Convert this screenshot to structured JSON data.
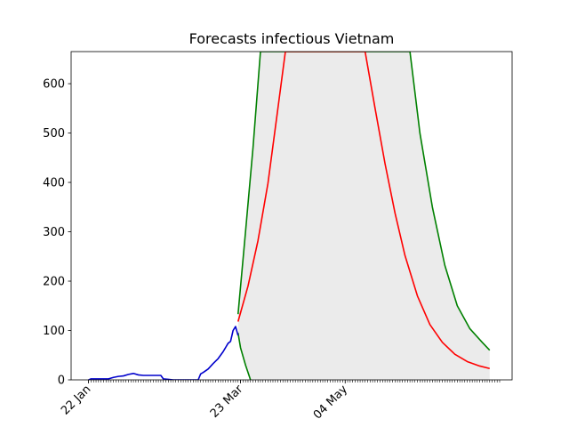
{
  "chart_data": {
    "type": "line",
    "title": "Forecasts infectious Vietnam",
    "xlabel": "",
    "ylabel": "",
    "x_tick_labels": [
      "22 Jan",
      "23 Mar",
      "04 May"
    ],
    "x_tick_dates": [
      "2020-01-22",
      "2020-03-23",
      "2020-05-04"
    ],
    "xlim": [
      "2020-01-15",
      "2020-07-10"
    ],
    "ylim": [
      0,
      665
    ],
    "y_ticks": [
      0,
      100,
      200,
      300,
      400,
      500,
      600
    ],
    "minor_tick_dates": {
      "start": "2020-01-22",
      "end": "2020-07-05",
      "step_days": 1
    },
    "grid": false,
    "legend": "none",
    "band": {
      "color": "#ebebeb",
      "lower_series": "lower",
      "upper_series": "upper"
    },
    "series": [
      {
        "key": "observed",
        "color": "#0000cc",
        "points": [
          [
            "2020-01-22",
            0
          ],
          [
            "2020-01-23",
            2
          ],
          [
            "2020-01-24",
            2
          ],
          [
            "2020-01-26",
            2
          ],
          [
            "2020-01-28",
            2
          ],
          [
            "2020-01-30",
            2
          ],
          [
            "2020-02-01",
            5
          ],
          [
            "2020-02-03",
            7
          ],
          [
            "2020-02-05",
            8
          ],
          [
            "2020-02-07",
            11
          ],
          [
            "2020-02-09",
            13
          ],
          [
            "2020-02-11",
            10
          ],
          [
            "2020-02-13",
            9
          ],
          [
            "2020-02-15",
            9
          ],
          [
            "2020-02-17",
            9
          ],
          [
            "2020-02-19",
            9
          ],
          [
            "2020-02-20",
            9
          ],
          [
            "2020-02-21",
            2
          ],
          [
            "2020-02-23",
            1
          ],
          [
            "2020-02-25",
            0
          ],
          [
            "2020-02-27",
            0
          ],
          [
            "2020-03-01",
            0
          ],
          [
            "2020-03-04",
            0
          ],
          [
            "2020-03-06",
            0
          ],
          [
            "2020-03-07",
            12
          ],
          [
            "2020-03-08",
            15
          ],
          [
            "2020-03-10",
            22
          ],
          [
            "2020-03-12",
            33
          ],
          [
            "2020-03-14",
            43
          ],
          [
            "2020-03-16",
            57
          ],
          [
            "2020-03-18",
            74
          ],
          [
            "2020-03-19",
            78
          ],
          [
            "2020-03-20",
            100
          ],
          [
            "2020-03-21",
            108
          ],
          [
            "2020-03-22",
            90
          ]
        ]
      },
      {
        "key": "median",
        "color": "#ff0000",
        "points": [
          [
            "2020-03-22",
            118
          ],
          [
            "2020-03-26",
            190
          ],
          [
            "2020-03-30",
            282
          ],
          [
            "2020-04-03",
            398
          ],
          [
            "2020-04-07",
            550
          ],
          [
            "2020-04-10",
            665
          ],
          [
            "2020-05-12",
            665
          ],
          [
            "2020-05-16",
            550
          ],
          [
            "2020-05-20",
            438
          ],
          [
            "2020-05-24",
            338
          ],
          [
            "2020-05-28",
            252
          ],
          [
            "2020-06-02",
            170
          ],
          [
            "2020-06-07",
            112
          ],
          [
            "2020-06-12",
            76
          ],
          [
            "2020-06-17",
            52
          ],
          [
            "2020-06-22",
            37
          ],
          [
            "2020-06-27",
            28
          ],
          [
            "2020-07-01",
            23
          ]
        ]
      },
      {
        "key": "upper",
        "color": "#008000",
        "points": [
          [
            "2020-03-22",
            133
          ],
          [
            "2020-03-25",
            300
          ],
          [
            "2020-03-28",
            470
          ],
          [
            "2020-03-31",
            665
          ],
          [
            "2020-05-30",
            665
          ],
          [
            "2020-06-03",
            500
          ],
          [
            "2020-06-08",
            350
          ],
          [
            "2020-06-13",
            232
          ],
          [
            "2020-06-18",
            150
          ],
          [
            "2020-06-23",
            104
          ],
          [
            "2020-06-28",
            76
          ],
          [
            "2020-07-01",
            60
          ]
        ]
      },
      {
        "key": "lower",
        "color": "#008000",
        "points": [
          [
            "2020-03-22",
            95
          ],
          [
            "2020-03-23",
            65
          ],
          [
            "2020-03-25",
            30
          ],
          [
            "2020-03-27",
            0
          ]
        ]
      }
    ]
  }
}
